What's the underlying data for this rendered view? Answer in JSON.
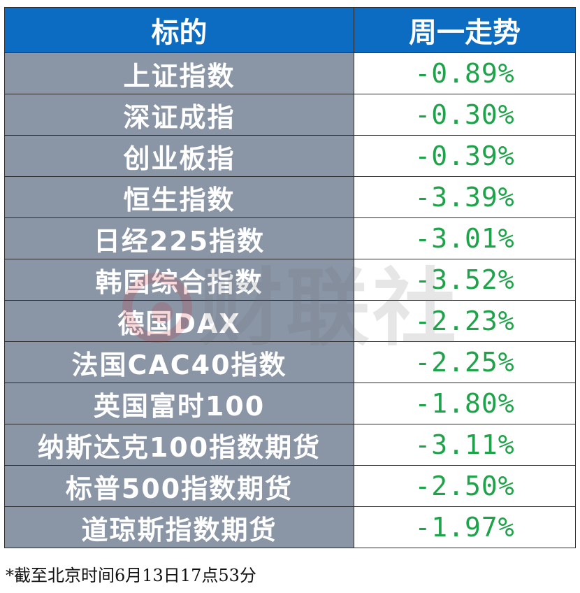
{
  "header": {
    "col_name": "标的",
    "col_trend": "周一走势"
  },
  "rows": [
    {
      "name": "上证指数",
      "change": "-0.89%"
    },
    {
      "name": "深证成指",
      "change": "-0.30%"
    },
    {
      "name": "创业板指",
      "change": "-0.39%"
    },
    {
      "name": "恒生指数",
      "change": "-3.39%"
    },
    {
      "name": "日经225指数",
      "change": "-3.01%"
    },
    {
      "name": "韩国综合指数",
      "change": "-3.52%"
    },
    {
      "name": "德国DAX",
      "change": "-2.23%"
    },
    {
      "name": "法国CAC40指数",
      "change": "-2.25%"
    },
    {
      "name": "英国富时100",
      "change": "-1.80%"
    },
    {
      "name": "纳斯达克100指数期货",
      "change": "-3.11%"
    },
    {
      "name": "标普500指数期货",
      "change": "-2.50%"
    },
    {
      "name": "道琼斯指数期货",
      "change": "-1.97%"
    }
  ],
  "footnote": "*截至北京时间6月13日17点53分",
  "watermark": {
    "text": "财联社",
    "logo_icon": "cls-logo-icon"
  },
  "colors": {
    "header_bg": "#0b6cc2",
    "name_bg": "#8a95a6",
    "negative_text": "#1fa34a"
  }
}
